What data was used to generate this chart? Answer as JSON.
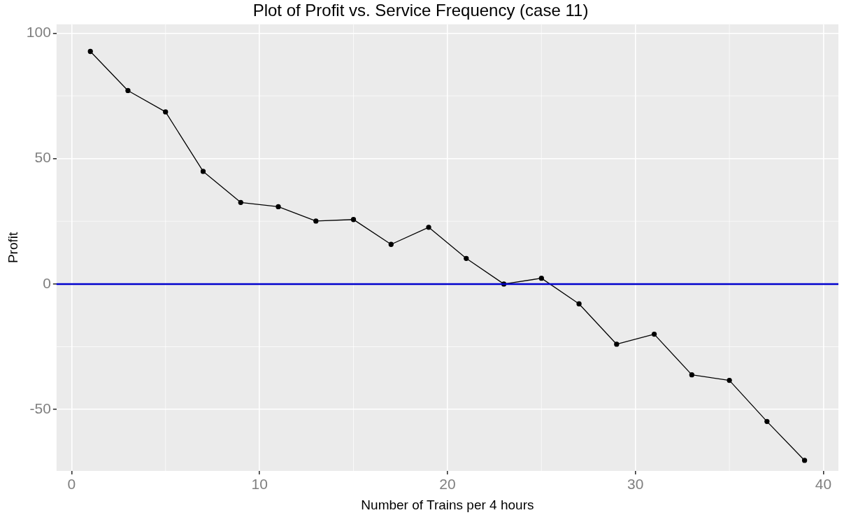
{
  "chart_data": {
    "type": "line",
    "title": "Plot of Profit vs. Service Frequency (case 11)",
    "xlabel": "Number of Trains per 4 hours",
    "ylabel": "Profit",
    "x": [
      1,
      3,
      5,
      7,
      9,
      11,
      13,
      15,
      17,
      19,
      21,
      23,
      25,
      27,
      29,
      31,
      33,
      35,
      37,
      39
    ],
    "series": [
      {
        "color": "#000000",
        "values": [
          92.7,
          77.1,
          68.6,
          44.9,
          32.5,
          30.8,
          25.1,
          25.7,
          15.8,
          22.6,
          10.2,
          0,
          2.3,
          -7.9,
          -24,
          -20,
          -36.2,
          -38.4,
          -54.8,
          -70.3
        ]
      }
    ],
    "xlim": [
      -0.8,
      40.8
    ],
    "xticks": [
      0,
      10,
      20,
      30,
      40
    ],
    "ylim": [
      -74.5,
      103.5
    ],
    "yticks": [
      -50,
      0,
      50,
      100
    ],
    "ref_lines": [
      {
        "axis": "y",
        "value": 0,
        "color": "#0000cd"
      }
    ],
    "grid": true,
    "legend": false,
    "marker": "circle",
    "line_style": "solid"
  }
}
